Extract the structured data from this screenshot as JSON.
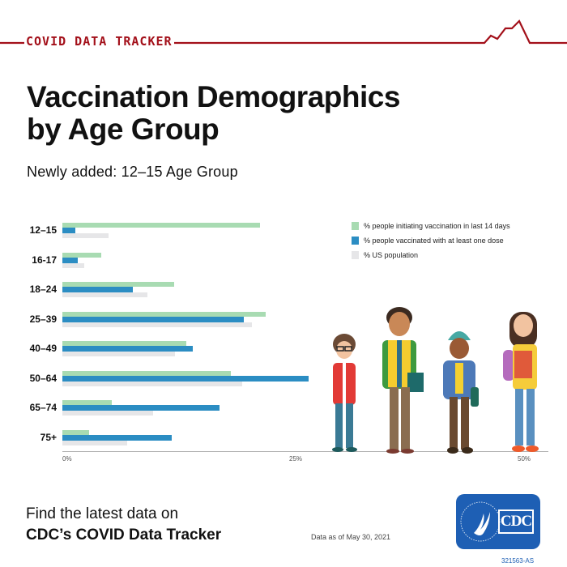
{
  "header": {
    "title": "COVID DATA TRACKER",
    "accent_color": "#a3101a"
  },
  "title": {
    "line1": "Vaccination Demographics",
    "line2": "by Age Group"
  },
  "subtitle": "Newly added: 12–15 Age Group",
  "legend": [
    {
      "label": "% people initiating vaccination in last 14 days",
      "color": "#a8dbb2"
    },
    {
      "label": "% people vaccinated with at least one dose",
      "color": "#2b8dc3"
    },
    {
      "label": "% US population",
      "color": "#e6e6e8"
    }
  ],
  "axis": {
    "ticks": [
      "0%",
      "25%",
      "50%"
    ]
  },
  "chart_data": {
    "type": "bar",
    "orientation": "horizontal",
    "title": "Vaccination Demographics by Age Group",
    "subtitle": "Newly added: 12–15 Age Group",
    "xlabel": "",
    "ylabel": "",
    "xlim": [
      0,
      50
    ],
    "x_ticks": [
      "0%",
      "25%",
      "50%"
    ],
    "grid": false,
    "legend_position": "upper right",
    "categories": [
      "12–15",
      "16-17",
      "18–24",
      "25–39",
      "40–49",
      "50–64",
      "65–74",
      "75+"
    ],
    "series": [
      {
        "name": "% people initiating vaccination in last 14 days",
        "color": "#a8dbb2",
        "values": [
          21.4,
          4.2,
          12.1,
          22.0,
          13.4,
          18.2,
          5.3,
          2.9
        ]
      },
      {
        "name": "% people vaccinated with at least one dose",
        "color": "#2b8dc3",
        "values": [
          1.4,
          1.7,
          7.6,
          19.6,
          14.1,
          26.6,
          17.0,
          11.8
        ]
      },
      {
        "name": "% US population",
        "color": "#e6e6e8",
        "values": [
          5.0,
          2.4,
          9.2,
          20.5,
          12.2,
          19.4,
          9.8,
          7.0
        ]
      }
    ]
  },
  "footer": {
    "line1": "Find the latest data on",
    "line2": "CDC’s COVID Data Tracker",
    "data_as_of": "Data as of May 30, 2021",
    "logo_text": "CDC",
    "code": "321563-AS"
  }
}
